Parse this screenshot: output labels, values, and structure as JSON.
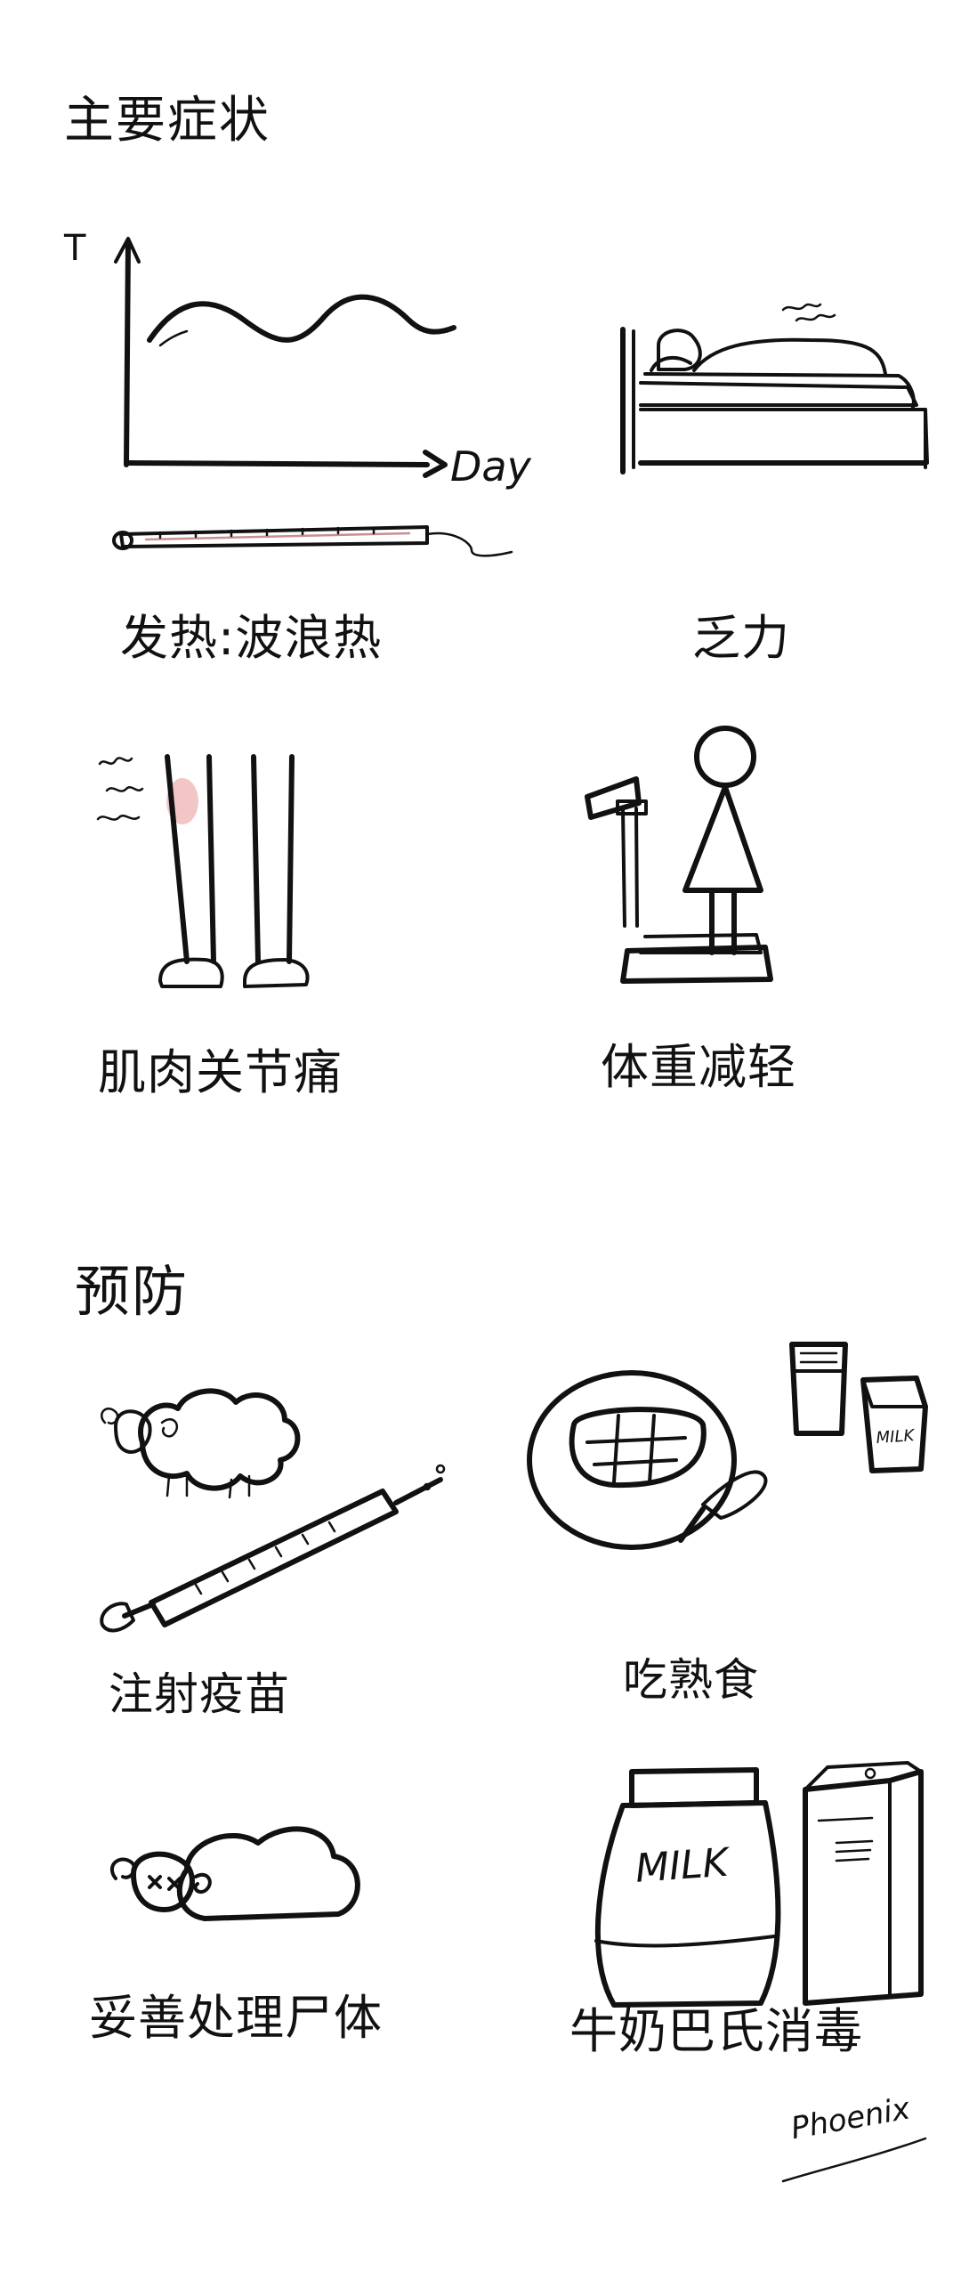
{
  "sections": {
    "symptoms_title": "主要症状",
    "prevention_title": "预防"
  },
  "symptoms": {
    "fever": "发热:波浪热",
    "fatigue": "乏力",
    "pain": "肌肉关节痛",
    "weight": "体重减轻"
  },
  "prevention": {
    "vaccine": "注射疫苗",
    "cooked_food": "吃熟食",
    "disposal": "妥善处理尸体",
    "pasteurize": "牛奶巴氏消毒"
  },
  "chart_labels": {
    "y_axis": "T",
    "x_axis": "Day"
  },
  "package_labels": {
    "small_bag": "MILK",
    "big_bag": "MILK"
  },
  "signature": "Phoenix"
}
